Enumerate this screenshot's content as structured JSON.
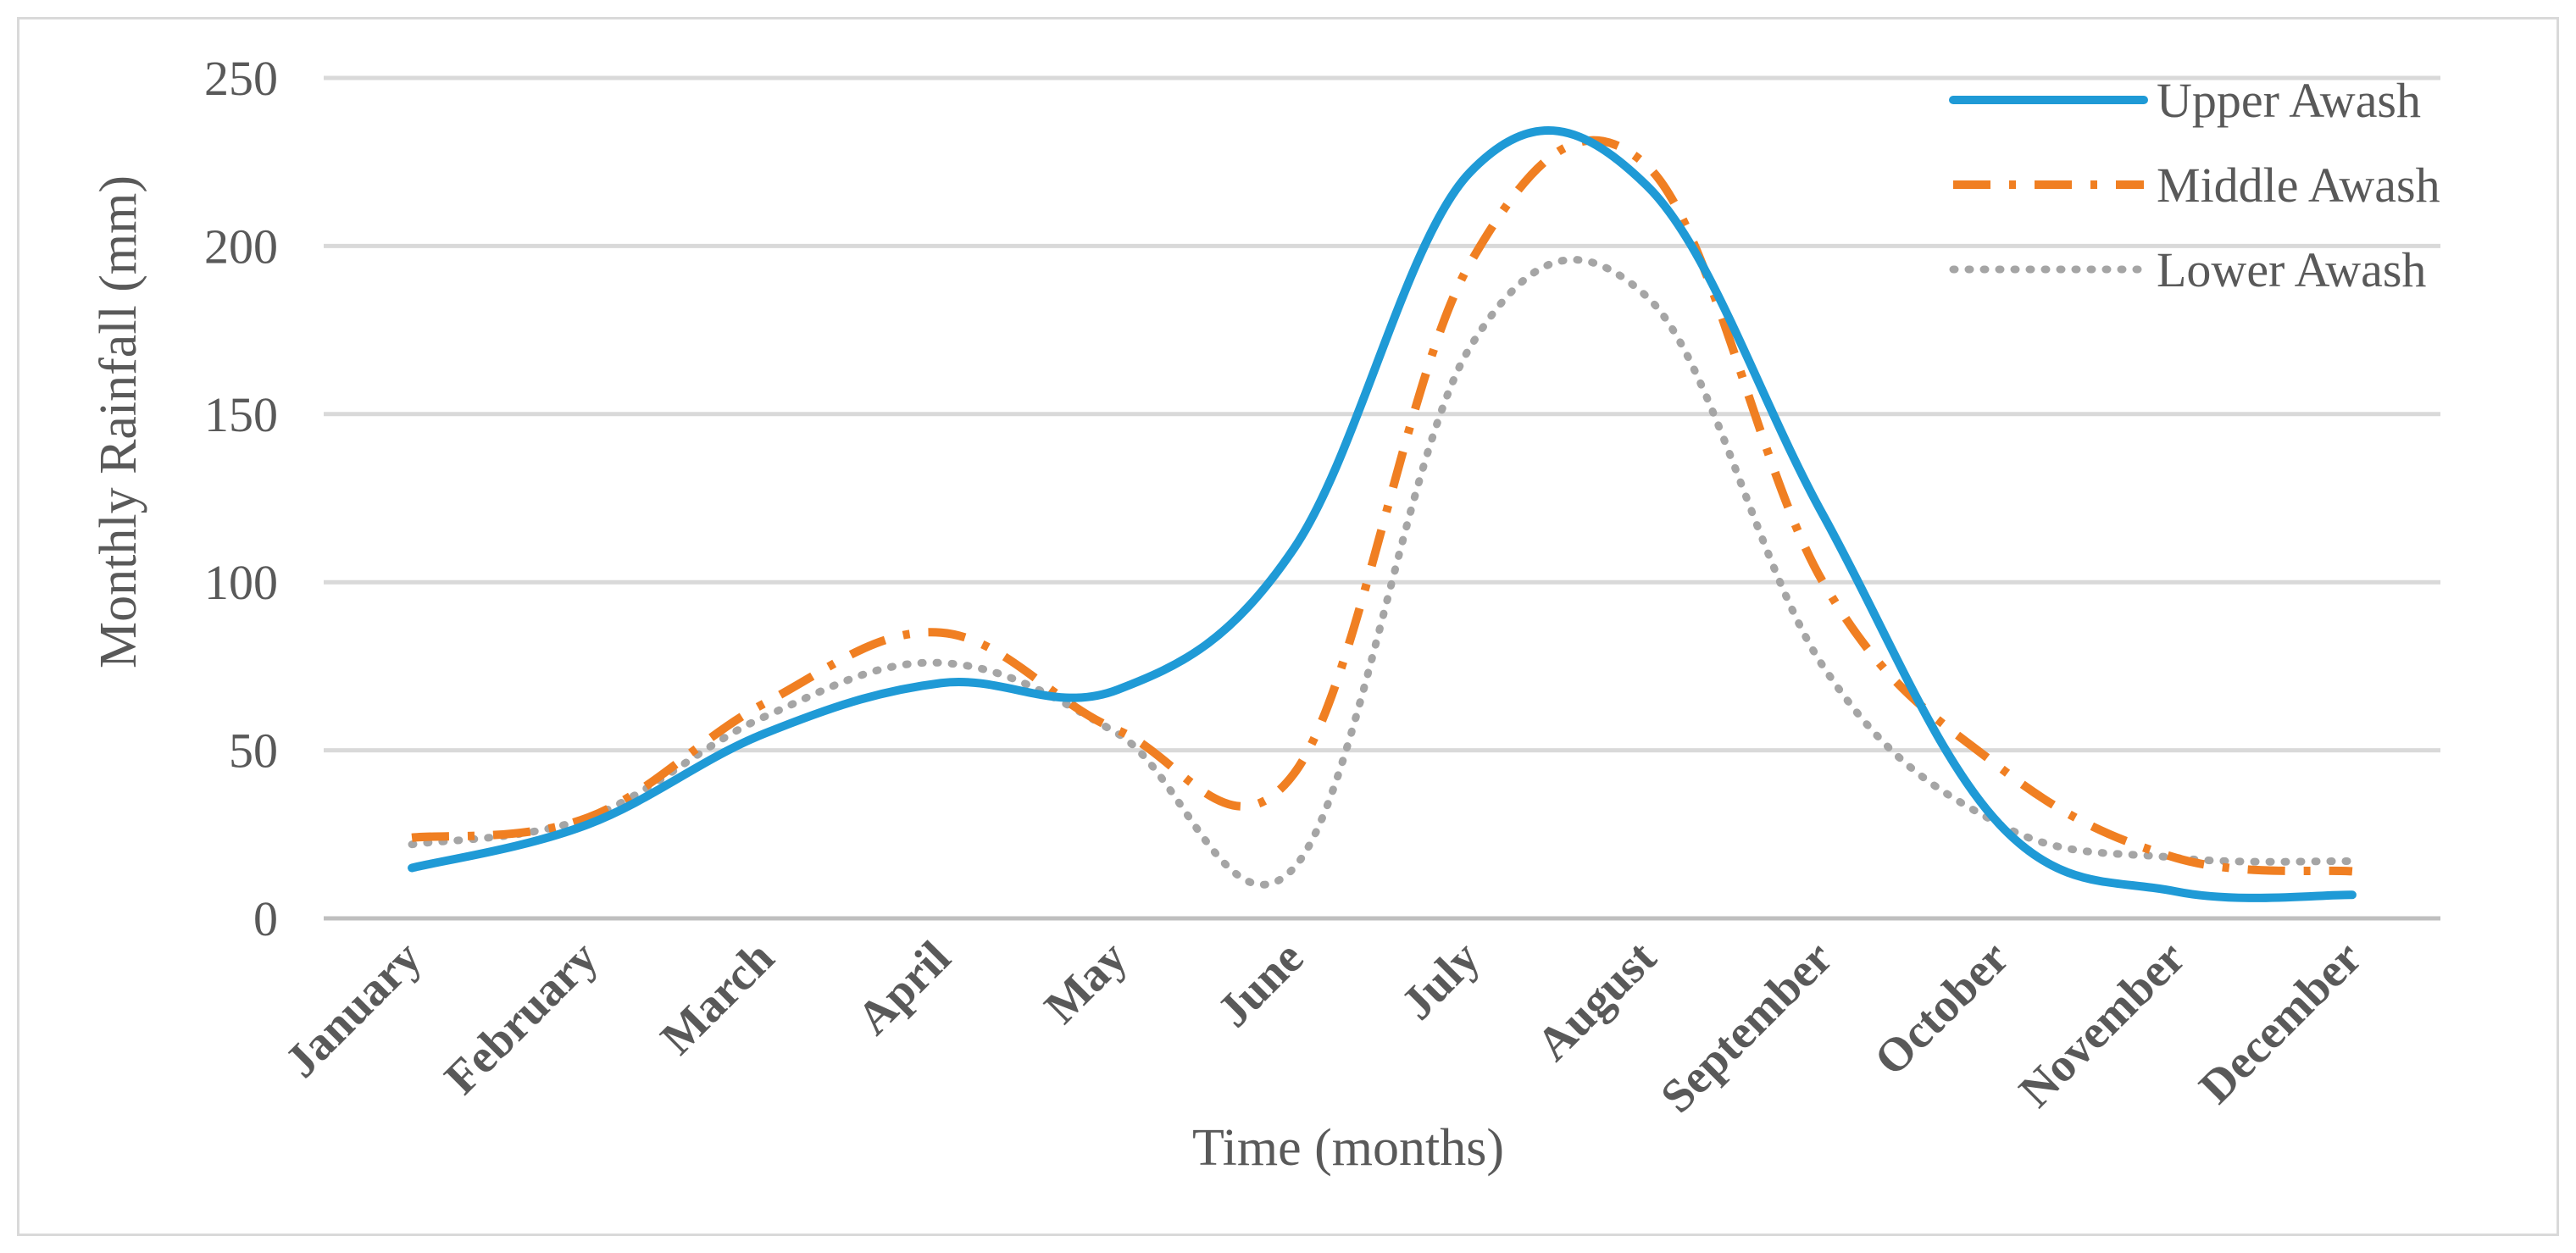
{
  "chart_data": {
    "type": "line",
    "title": "",
    "xlabel": "Time (months)",
    "ylabel": "Monthly Rainfall (mm)",
    "ylim": [
      0,
      250
    ],
    "yticks": [
      0,
      50,
      100,
      150,
      200,
      250
    ],
    "grid": true,
    "legend": "top-right",
    "categories": [
      "January",
      "February",
      "March",
      "April",
      "May",
      "June",
      "July",
      "August",
      "September",
      "October",
      "November",
      "December"
    ],
    "series": [
      {
        "name": "Upper Awash",
        "style": "solid",
        "color": "#1f9ad6",
        "values": [
          15,
          28,
          55,
          70,
          68,
          110,
          222,
          218,
          120,
          28,
          8,
          7
        ]
      },
      {
        "name": "Middle Awash",
        "style": "dash-dot",
        "color": "#f07f22",
        "values": [
          24,
          30,
          64,
          85,
          56,
          43,
          195,
          224,
          100,
          45,
          18,
          14
        ]
      },
      {
        "name": "Lower Awash",
        "style": "dotted",
        "color": "#a5a5a5",
        "values": [
          22,
          30,
          60,
          76,
          55,
          15,
          170,
          185,
          75,
          28,
          18,
          17
        ]
      }
    ]
  }
}
